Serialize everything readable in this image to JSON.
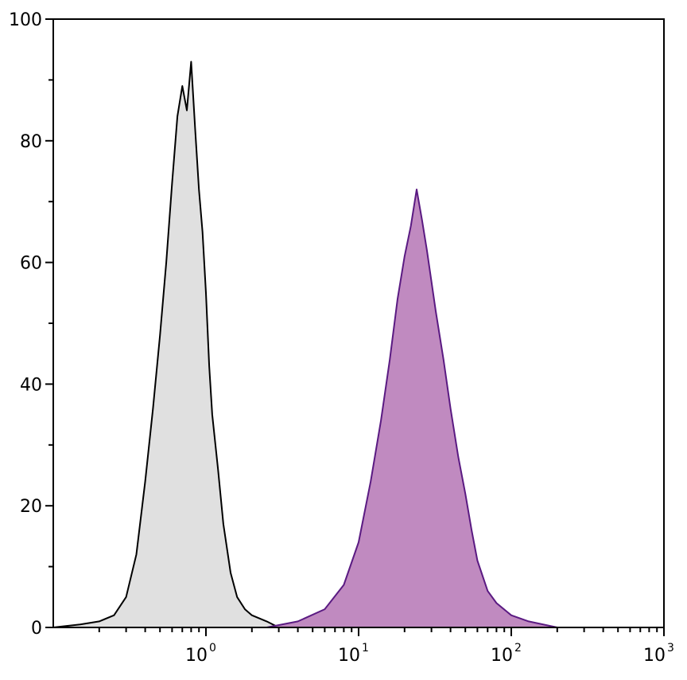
{
  "chart_data": {
    "type": "area",
    "title": "",
    "xlabel": "",
    "ylabel": "",
    "x_scale": "log",
    "xlim": [
      0.1,
      1000
    ],
    "ylim": [
      0,
      100
    ],
    "grid": false,
    "legend": "none",
    "y_ticks": [
      {
        "value": 0,
        "label": "0"
      },
      {
        "value": 20,
        "label": "20"
      },
      {
        "value": 40,
        "label": "40"
      },
      {
        "value": 60,
        "label": "60"
      },
      {
        "value": 80,
        "label": "80"
      },
      {
        "value": 100,
        "label": "100"
      }
    ],
    "x_ticks": [
      {
        "value": 1,
        "base": "10",
        "exp": "0"
      },
      {
        "value": 10,
        "base": "10",
        "exp": "1"
      },
      {
        "value": 100,
        "base": "10",
        "exp": "2"
      },
      {
        "value": 1000,
        "base": "10",
        "exp": "3"
      }
    ],
    "series": [
      {
        "fill": "#e0e0e0",
        "stroke": "#000000",
        "x": [
          0.1,
          0.15,
          0.2,
          0.25,
          0.3,
          0.35,
          0.4,
          0.45,
          0.5,
          0.55,
          0.6,
          0.65,
          0.7,
          0.75,
          0.8,
          0.85,
          0.9,
          0.95,
          1.0,
          1.05,
          1.1,
          1.2,
          1.3,
          1.45,
          1.6,
          1.8,
          2.0,
          2.5,
          3.0
        ],
        "y": [
          0,
          0.5,
          1,
          2,
          5,
          12,
          24,
          36,
          48,
          60,
          73,
          84,
          89,
          85,
          93,
          82,
          72,
          65,
          55,
          43,
          35,
          26,
          17,
          9,
          5,
          3,
          2,
          1,
          0
        ]
      },
      {
        "fill": "#c08ac0",
        "stroke": "#5a1a82",
        "x": [
          2.5,
          4,
          6,
          8,
          10,
          12,
          14,
          16,
          18,
          20,
          22,
          24,
          26,
          28,
          32,
          36,
          40,
          45,
          50,
          55,
          60,
          70,
          80,
          100,
          130,
          200
        ],
        "y": [
          0,
          1,
          3,
          7,
          14,
          24,
          34,
          44,
          54,
          61,
          66,
          72,
          67,
          62,
          52,
          44,
          36,
          28,
          22,
          16,
          11,
          6,
          4,
          2,
          1,
          0
        ]
      }
    ]
  }
}
